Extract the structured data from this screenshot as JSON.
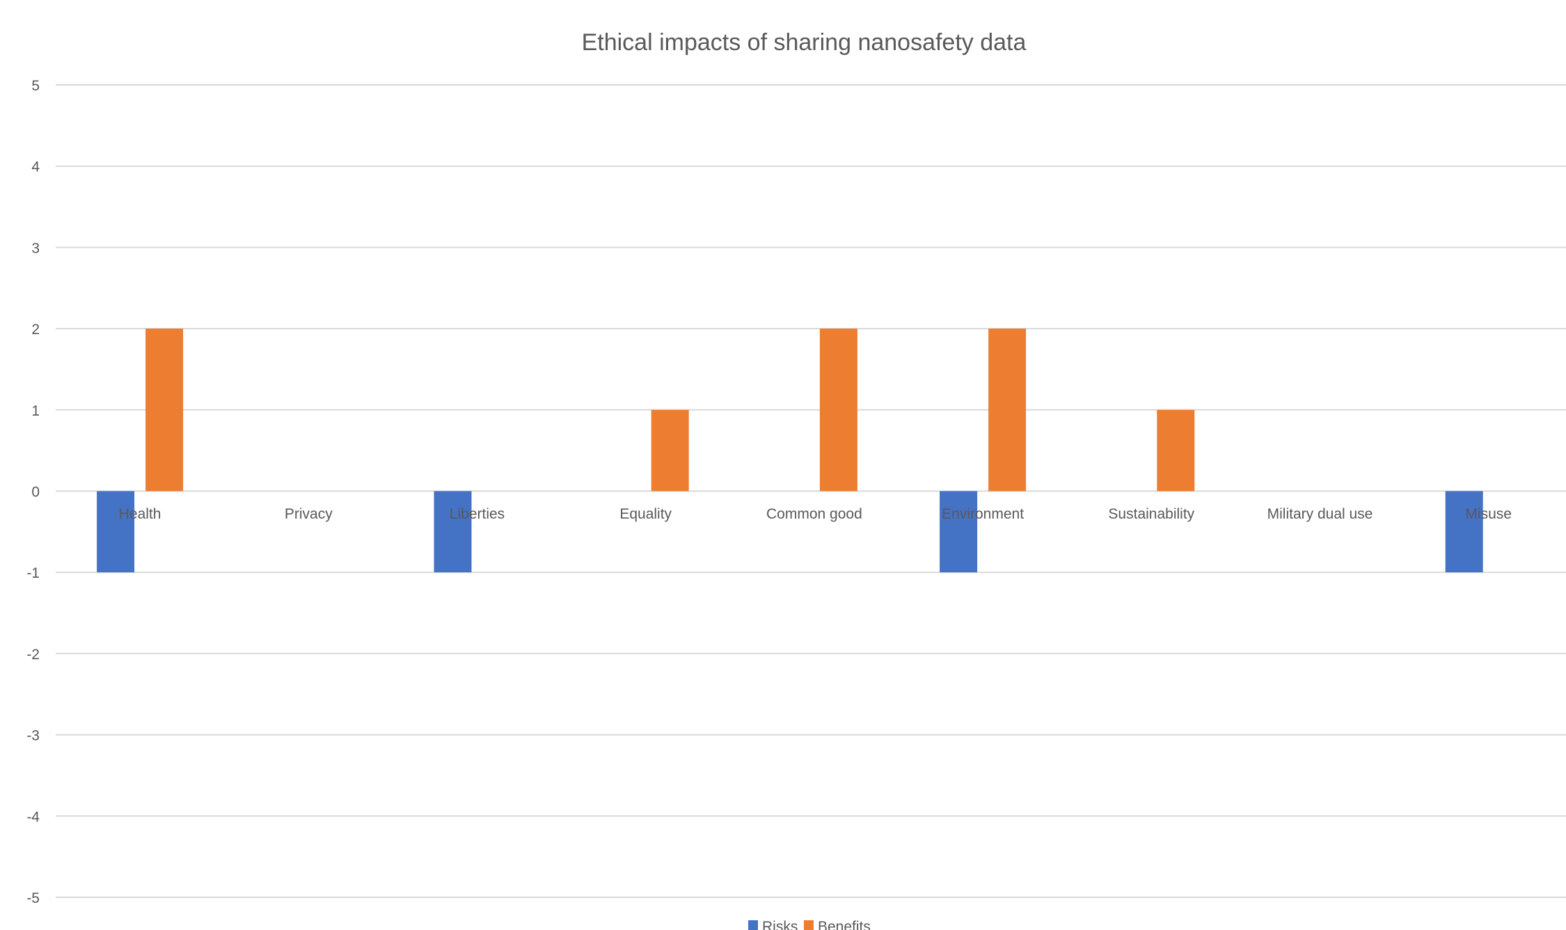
{
  "chart_data": {
    "type": "bar",
    "title": "Ethical impacts of sharing nanosafety data",
    "xlabel": "",
    "ylabel": "",
    "ylim": [
      -5,
      5
    ],
    "yticks": [
      5,
      4,
      3,
      2,
      1,
      0,
      -1,
      -2,
      -3,
      -4,
      -5
    ],
    "grid": true,
    "legend_position": "bottom",
    "categories": [
      "Health",
      "Privacy",
      "Liberties",
      "Equality",
      "Common good",
      "Environment",
      "Sustainability",
      "Military dual use",
      "Misuse"
    ],
    "series": [
      {
        "name": "Risks",
        "color": "#4472C4",
        "values": [
          -1,
          0,
          -1,
          0,
          0,
          -1,
          0,
          0,
          -1
        ]
      },
      {
        "name": "Benefits",
        "color": "#ED7D31",
        "values": [
          2,
          0,
          0,
          1,
          2,
          2,
          1,
          0,
          0
        ]
      }
    ]
  }
}
